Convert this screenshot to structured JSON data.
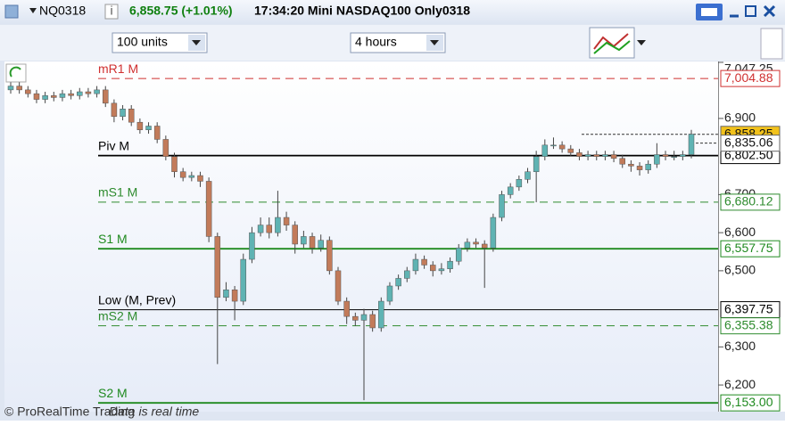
{
  "header": {
    "symbol": "NQ0318",
    "price": "6,858.75 (+1.01%)",
    "time_title": "17:34:20 Mini NASDAQ100 Only0318"
  },
  "toolbar": {
    "units": "100 units",
    "period": "4 hours"
  },
  "footer": {
    "copyright": "© ProRealTime Trading",
    "note": "Data is real time"
  },
  "chart_data": {
    "type": "candlestick",
    "up_color": "#5fb3b3",
    "down_color": "#c27b5a",
    "open": [
      6975,
      6985,
      6975,
      6965,
      6950,
      6960,
      6955,
      6965,
      6960,
      6970,
      6965,
      6975,
      6940,
      6905,
      6925,
      6890,
      6870,
      6880,
      6845,
      6800,
      6760,
      6745,
      6750,
      6735,
      6590,
      6430,
      6450,
      6420,
      6530,
      6600,
      6620,
      6600,
      6640,
      6620,
      6570,
      6590,
      6560,
      6580,
      6500,
      6420,
      6380,
      6370,
      6385,
      6350,
      6420,
      6460,
      6480,
      6500,
      6530,
      6515,
      6500,
      6505,
      6525,
      6560,
      6575,
      6570,
      6560,
      6640,
      6700,
      6720,
      6740,
      6760,
      6800,
      6830,
      6830,
      6820,
      6810,
      6800,
      6805,
      6800,
      6805,
      6795,
      6780,
      6775,
      6765,
      6780,
      6805,
      6800,
      6800,
      6805
    ],
    "high": [
      6995,
      6995,
      6985,
      6975,
      6970,
      6970,
      6975,
      6975,
      6980,
      6980,
      6985,
      6985,
      6950,
      6935,
      6935,
      6900,
      6890,
      6890,
      6855,
      6810,
      6770,
      6760,
      6760,
      6745,
      6600,
      6470,
      6460,
      6545,
      6615,
      6640,
      6640,
      6710,
      6655,
      6630,
      6605,
      6600,
      6595,
      6590,
      6510,
      6430,
      6390,
      6400,
      6395,
      6430,
      6470,
      6490,
      6510,
      6545,
      6540,
      6525,
      6520,
      6535,
      6570,
      6585,
      6585,
      6580,
      6650,
      6710,
      6730,
      6750,
      6770,
      6815,
      6845,
      6850,
      6840,
      6830,
      6820,
      6815,
      6815,
      6815,
      6815,
      6805,
      6790,
      6785,
      6790,
      6835,
      6815,
      6815,
      6815,
      6870
    ],
    "low": [
      6965,
      6965,
      6955,
      6940,
      6940,
      6945,
      6945,
      6950,
      6950,
      6955,
      6955,
      6930,
      6890,
      6895,
      6880,
      6860,
      6860,
      6835,
      6790,
      6745,
      6735,
      6735,
      6720,
      6575,
      6255,
      6420,
      6370,
      6410,
      6520,
      6590,
      6585,
      6590,
      6605,
      6545,
      6560,
      6545,
      6550,
      6490,
      6410,
      6360,
      6355,
      6160,
      6340,
      6340,
      6410,
      6450,
      6470,
      6490,
      6505,
      6485,
      6490,
      6495,
      6515,
      6550,
      6560,
      6455,
      6550,
      6630,
      6690,
      6710,
      6730,
      6680,
      6790,
      6820,
      6810,
      6800,
      6790,
      6790,
      6790,
      6790,
      6785,
      6770,
      6760,
      6750,
      6755,
      6770,
      6790,
      6790,
      6790,
      6795
    ],
    "close": [
      6985,
      6975,
      6965,
      6950,
      6960,
      6955,
      6965,
      6960,
      6970,
      6965,
      6975,
      6940,
      6905,
      6925,
      6890,
      6870,
      6880,
      6845,
      6800,
      6760,
      6745,
      6750,
      6735,
      6590,
      6430,
      6450,
      6420,
      6530,
      6600,
      6620,
      6600,
      6640,
      6620,
      6570,
      6590,
      6560,
      6580,
      6500,
      6420,
      6380,
      6370,
      6385,
      6350,
      6420,
      6460,
      6480,
      6500,
      6530,
      6515,
      6500,
      6505,
      6525,
      6560,
      6575,
      6570,
      6560,
      6640,
      6700,
      6720,
      6740,
      6760,
      6800,
      6830,
      6830,
      6820,
      6810,
      6800,
      6805,
      6800,
      6805,
      6795,
      6780,
      6775,
      6765,
      6780,
      6805,
      6800,
      6800,
      6805,
      6858.75
    ],
    "ylim": [
      6130,
      7047.25
    ],
    "yticks": [
      {
        "value": 7047.25,
        "label": "7,047.25"
      },
      {
        "value": 6900,
        "label": "6,900"
      },
      {
        "value": 6700,
        "label": "6,700"
      },
      {
        "value": 6600,
        "label": "6,600"
      },
      {
        "value": 6500,
        "label": "6,500"
      },
      {
        "value": 6300,
        "label": "6,300"
      },
      {
        "value": 6200,
        "label": "6,200"
      }
    ],
    "levels": [
      {
        "name": "mR1 M",
        "value": 7004.88,
        "label": "7,004.88",
        "color": "#d03030",
        "style": "dashed"
      },
      {
        "name": "Piv M",
        "value": 6802.5,
        "label": "6,802.50",
        "color": "#000000",
        "style": "solid"
      },
      {
        "name": "mS1 M",
        "value": 6680.12,
        "label": "6,680.12",
        "color": "#2e8b2e",
        "style": "dashed"
      },
      {
        "name": "S1 M",
        "value": 6557.75,
        "label": "6,557.75",
        "color": "#1f8a1f",
        "style": "solid"
      },
      {
        "name": "Low (M, Prev)",
        "value": 6397.75,
        "label": "6,397.75",
        "color": "#000000",
        "style": "thin"
      },
      {
        "name": "mS2 M",
        "value": 6355.38,
        "label": "6,355.38",
        "color": "#2e8b2e",
        "style": "dashed"
      },
      {
        "name": "S2 M",
        "value": 6153,
        "label": "6,153.00",
        "color": "#1f8a1f",
        "style": "solid"
      }
    ],
    "markers": [
      {
        "value": 6858.25,
        "label": "6,858.25",
        "color": "#f2c21b"
      },
      {
        "value": 6835.06,
        "label": "6,835.06",
        "color": "#ffffff"
      }
    ]
  }
}
